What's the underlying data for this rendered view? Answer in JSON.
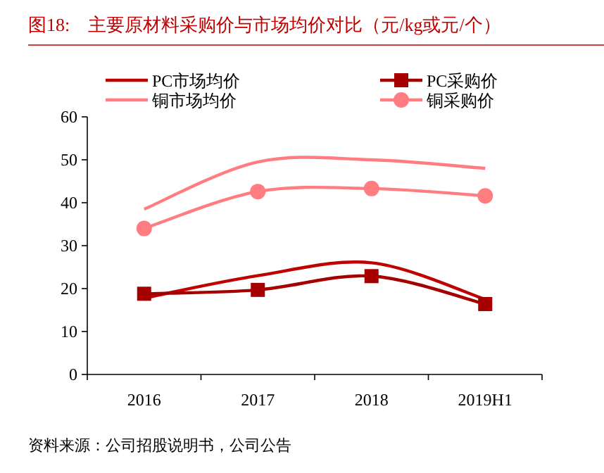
{
  "chart_data": {
    "type": "line",
    "title": "图18:　主要原材料采购价与市场均价对比（元/kg或元/个）",
    "categories": [
      "2016",
      "2017",
      "2018",
      "2019H1"
    ],
    "series": [
      {
        "name": "PC市场均价",
        "color": "#c00000",
        "values": [
          17.8,
          23,
          26,
          17.5
        ],
        "marker": "none"
      },
      {
        "name": "PC采购价",
        "color": "#a50000",
        "values": [
          18.8,
          19.7,
          22.9,
          16.4
        ],
        "marker": "square"
      },
      {
        "name": "铜市场均价",
        "color": "#ff7c80",
        "values": [
          38.5,
          49.5,
          50,
          48
        ],
        "marker": "none"
      },
      {
        "name": "铜采购价",
        "color": "#ff7c80",
        "values": [
          34,
          42.6,
          43.3,
          41.6
        ],
        "marker": "circle"
      }
    ],
    "ylim": [
      0,
      60
    ],
    "yticks": [
      0,
      10,
      20,
      30,
      40,
      50,
      60
    ],
    "grid": false,
    "legend": "top",
    "line_style": "solid",
    "annotations": [
      "资料来源：公司招股说明书，公司公告"
    ]
  }
}
